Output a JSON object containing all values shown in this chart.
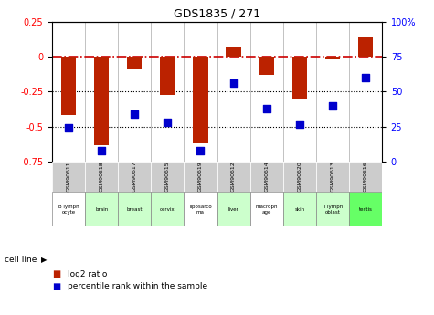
{
  "title": "GDS1835 / 271",
  "samples": [
    "GSM90611",
    "GSM90618",
    "GSM90617",
    "GSM90615",
    "GSM90619",
    "GSM90612",
    "GSM90614",
    "GSM90620",
    "GSM90613",
    "GSM90616"
  ],
  "cell_lines": [
    "B lymph\nocyte",
    "brain",
    "breast",
    "cervix",
    "liposarco\nma",
    "liver",
    "macroph\nage",
    "skin",
    "T lymph\noblast",
    "testis"
  ],
  "cell_bg": [
    "#ffffff",
    "#ccffcc",
    "#ccffcc",
    "#ccffcc",
    "#ffffff",
    "#ccffcc",
    "#ffffff",
    "#ccffcc",
    "#ccffcc",
    "#66ff66"
  ],
  "log2_ratio": [
    -0.42,
    -0.63,
    -0.09,
    -0.27,
    -0.62,
    0.07,
    -0.13,
    -0.3,
    -0.02,
    0.14
  ],
  "percentile_rank": [
    24,
    8,
    34,
    28,
    8,
    56,
    38,
    27,
    40,
    60
  ],
  "bar_color": "#bb2200",
  "dot_color": "#0000cc",
  "left_ylim": [
    -0.75,
    0.25
  ],
  "right_ylim": [
    0,
    100
  ],
  "left_yticks": [
    -0.75,
    -0.5,
    -0.25,
    0,
    0.25
  ],
  "right_yticks": [
    0,
    25,
    50,
    75,
    100
  ],
  "right_yticklabels": [
    "0",
    "25",
    "50",
    "75",
    "100%"
  ],
  "dotted_lines": [
    -0.5,
    -0.25
  ],
  "zero_line_color": "#cc0000",
  "grid_color": "#aaaaaa",
  "sample_bg": "#cccccc",
  "legend_red_label": "log2 ratio",
  "legend_blue_label": "percentile rank within the sample",
  "cell_line_label": "cell line"
}
